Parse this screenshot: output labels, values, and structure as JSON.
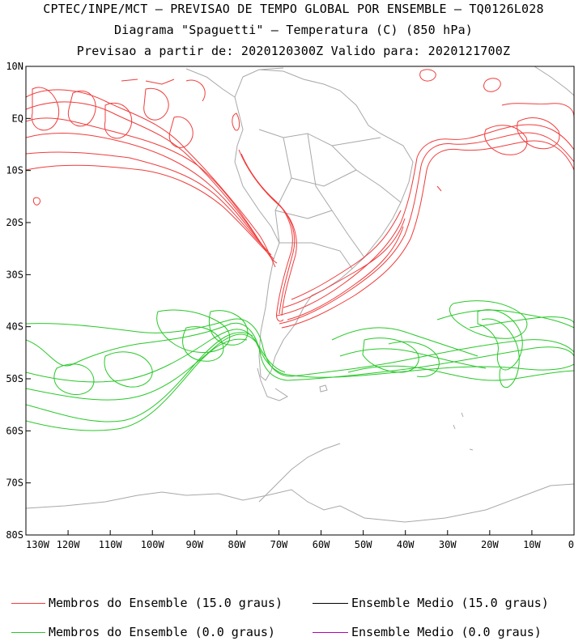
{
  "header": {
    "line1": "CPTEC/INPE/MCT – PREVISAO DE TEMPO GLOBAL POR ENSEMBLE – TQ0126L028",
    "line2": "Diagrama \"Spaguetti\" – Temperatura (C) (850 hPa)",
    "line3": "Previsao a partir de: 2020120300Z  Valido para: 2020121700Z"
  },
  "map": {
    "lat_labels": [
      "10N",
      "EQ",
      "10S",
      "20S",
      "30S",
      "40S",
      "50S",
      "60S",
      "70S",
      "80S"
    ],
    "lon_labels": [
      "130W",
      "120W",
      "110W",
      "100W",
      "90W",
      "80W",
      "70W",
      "60W",
      "50W",
      "40W",
      "30W",
      "20W",
      "10W",
      "0"
    ],
    "lat_range": [
      -80,
      10
    ],
    "lon_range": [
      -130,
      0
    ],
    "colors": {
      "member_15": "#f03c3c",
      "member_0": "#28c828",
      "mean_15": "#000000",
      "mean_0": "#b400b4",
      "coast": "#a8a8a8"
    }
  },
  "legend": [
    {
      "label": "Membros do Ensemble (15.0 graus)",
      "color": "#f03c3c"
    },
    {
      "label": "Ensemble Medio (15.0 graus)",
      "color": "#000000"
    },
    {
      "label": "Membros do Ensemble (0.0 graus)",
      "color": "#28c828"
    },
    {
      "label": "Ensemble Medio (0.0 graus)",
      "color": "#b400b4"
    }
  ]
}
